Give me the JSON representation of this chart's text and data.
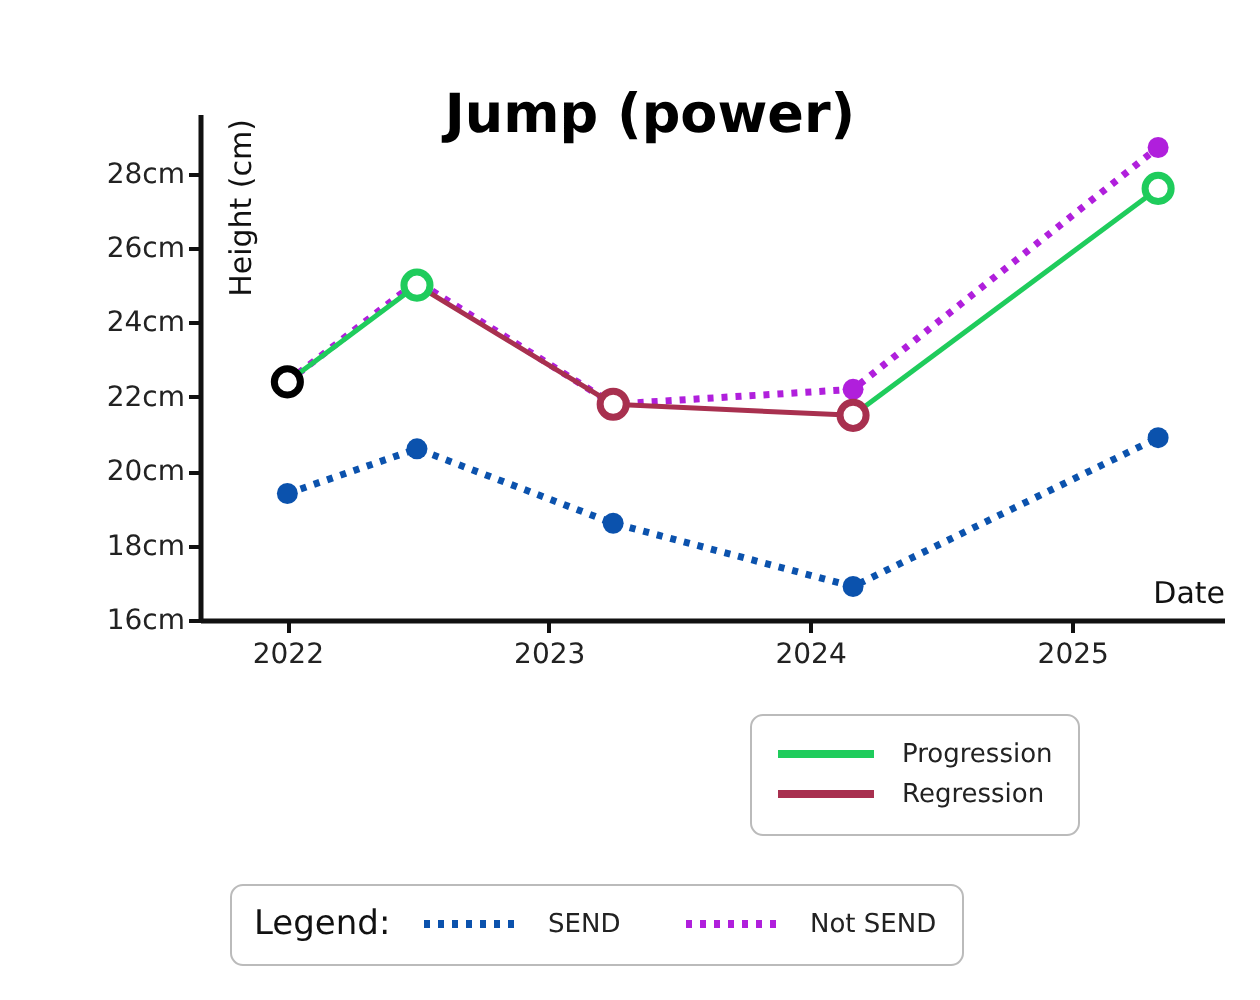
{
  "chart_data": {
    "type": "line",
    "title": "Jump (power)",
    "xlabel": "Date",
    "ylabel": "Height (cm)",
    "legend_title": "Legend:",
    "x": [
      "2022-01",
      "2022-07",
      "2023-04",
      "2024-03",
      "2025-05"
    ],
    "series": [
      {
        "name": "SEND",
        "color": "#0b52ad",
        "values": [
          19.4,
          20.6,
          18.6,
          16.9,
          20.9
        ],
        "line_style": "dotted",
        "marker": "circle"
      },
      {
        "name": "Not SEND",
        "color": "#b01fdc",
        "values": [
          22.4,
          25.1,
          21.8,
          22.2,
          28.7
        ],
        "line_style": "dotted",
        "marker": "circle"
      },
      {
        "name": "Progression",
        "color": "#1fcc5c",
        "values": [
          22.4,
          25.0,
          null,
          21.5,
          27.6
        ],
        "line_style": "solid",
        "marker": "none"
      },
      {
        "name": "Regression",
        "color": "#a8304f",
        "values": [
          null,
          25.0,
          21.8,
          21.5,
          null
        ],
        "line_style": "solid",
        "marker": "none"
      },
      {
        "type": "scatter",
        "colors": [
          "#000000",
          "#1fcc5c",
          "#a8304f",
          "#a8304f",
          "#1fcc5c"
        ],
        "values": [
          22.4,
          25.0,
          21.8,
          21.5,
          27.6
        ],
        "marker": "circle"
      }
    ],
    "xlim": [
      "2021-09",
      "2025-08"
    ],
    "xticks": [
      "2022",
      "2023",
      "2024",
      "2025"
    ],
    "ylim": [
      16,
      29.6
    ],
    "yticks": [
      {
        "value": 16,
        "label": "16cm"
      },
      {
        "value": 18,
        "label": "18cm"
      },
      {
        "value": 20,
        "label": "20cm"
      },
      {
        "value": 22,
        "label": "22cm"
      },
      {
        "value": 24,
        "label": "24cm"
      },
      {
        "value": 26,
        "label": "26cm"
      },
      {
        "value": 28,
        "label": "28cm"
      }
    ],
    "grid": false,
    "legend": "bottom"
  }
}
